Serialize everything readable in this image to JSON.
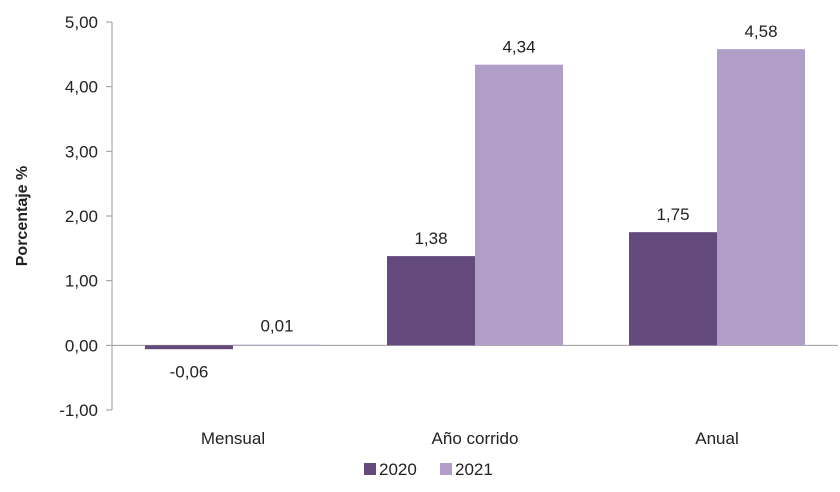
{
  "chart_data": {
    "type": "bar",
    "title": "",
    "xlabel": "",
    "ylabel": "Porcentaje %",
    "ylim": [
      -1,
      5
    ],
    "yticks": [
      -1,
      0,
      1,
      2,
      3,
      4,
      5
    ],
    "ytick_labels": [
      "-1,00",
      "0,00",
      "1,00",
      "2,00",
      "3,00",
      "4,00",
      "5,00"
    ],
    "categories": [
      "Mensual",
      "Año corrido",
      "Anual"
    ],
    "series": [
      {
        "name": "2020",
        "color": "#64497d",
        "values": [
          -0.06,
          1.38,
          1.75
        ],
        "labels": [
          "-0,06",
          "1,38",
          "1,75"
        ]
      },
      {
        "name": "2021",
        "color": "#b09ec8",
        "values": [
          0.01,
          4.34,
          4.58
        ],
        "labels": [
          "0,01",
          "4,34",
          "4,58"
        ]
      }
    ],
    "grid": false,
    "legend_position": "bottom"
  }
}
